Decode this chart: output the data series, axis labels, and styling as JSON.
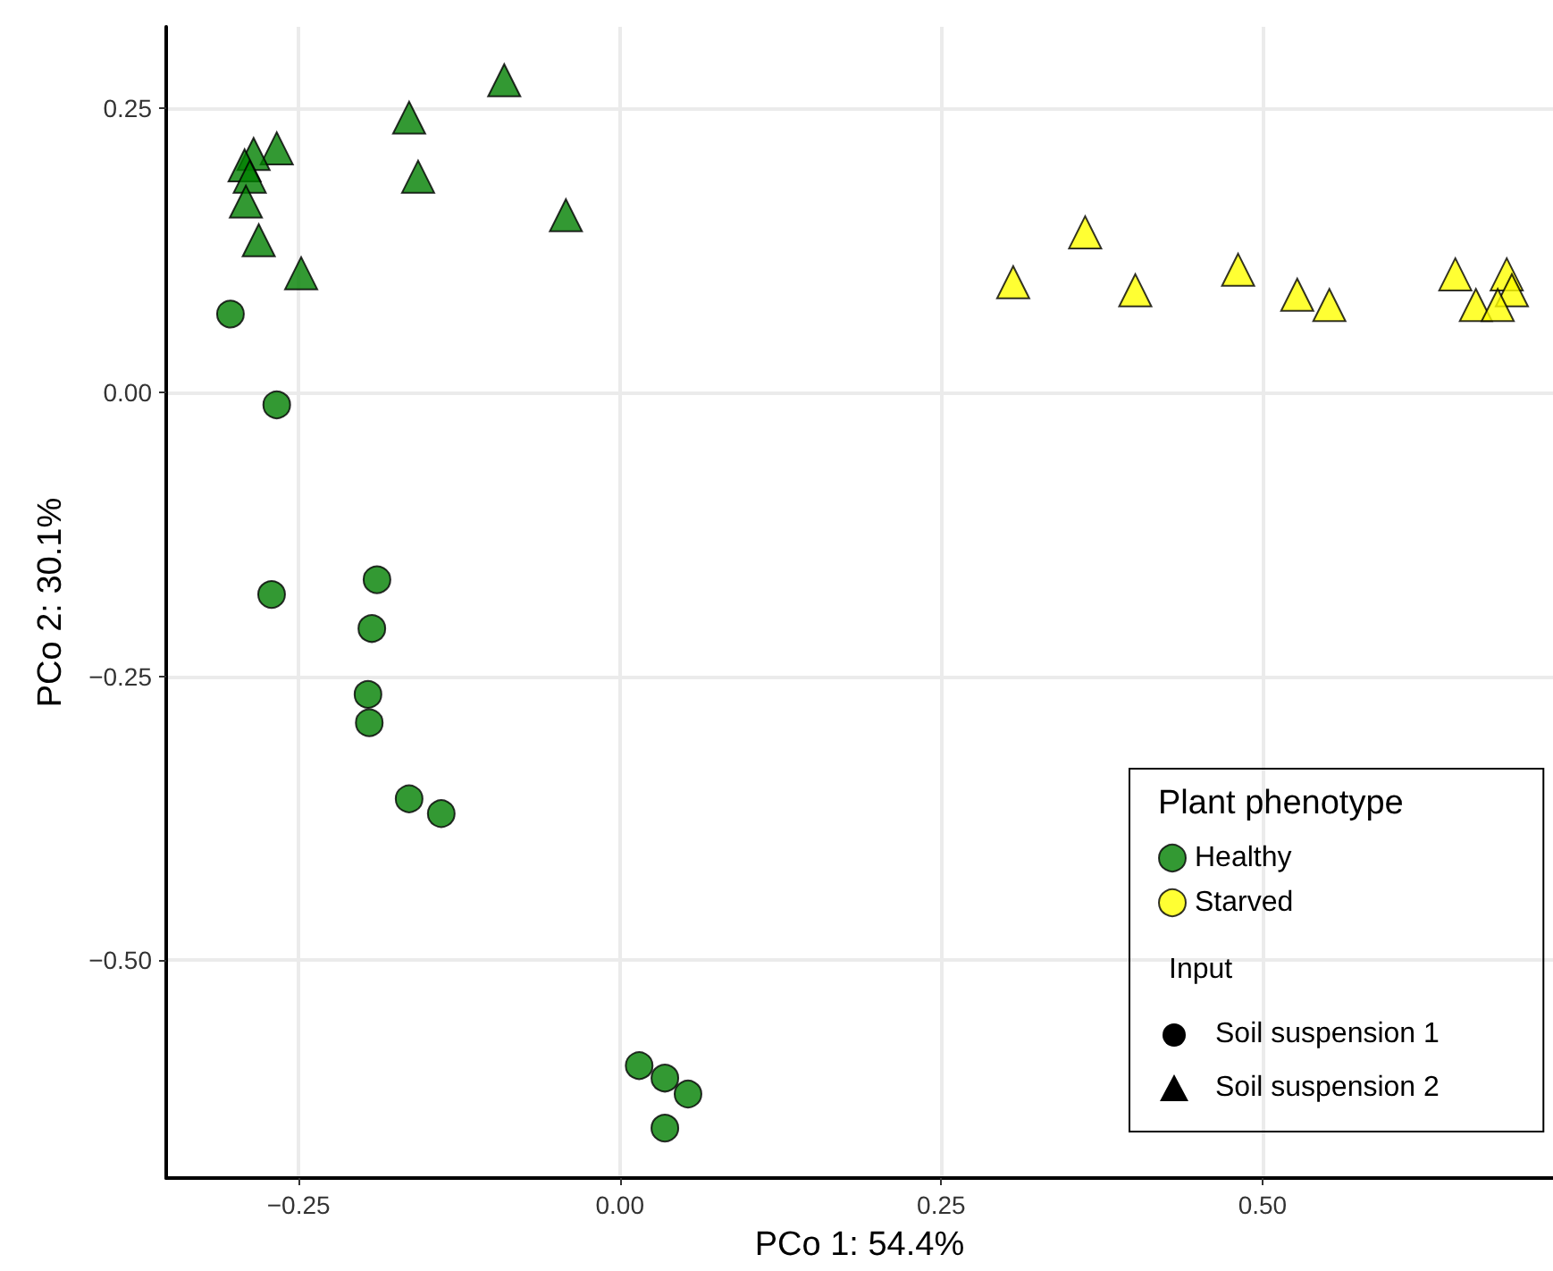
{
  "chart_data": {
    "type": "scatter",
    "xlabel": "PCo 1: 54.4%",
    "ylabel": "PCo 2: 30.1%",
    "xlim": [
      -0.353,
      0.726
    ],
    "ylim": [
      -0.692,
      0.322
    ],
    "xticks": [
      {
        "value": -0.25,
        "label": "−0.25"
      },
      {
        "value": 0,
        "label": "0.00"
      },
      {
        "value": 0.25,
        "label": "0.25"
      },
      {
        "value": 0.5,
        "label": "0.50"
      }
    ],
    "yticks": [
      {
        "value": -0.5,
        "label": "−0.50"
      },
      {
        "value": -0.25,
        "label": "−0.25"
      },
      {
        "value": 0,
        "label": "0.00"
      },
      {
        "value": 0.25,
        "label": "0.25"
      }
    ],
    "grid": true,
    "legend": "bottom right",
    "legend_title": "Plant phenotype",
    "annotations": [
      "Input",
      "Soil suspension 1",
      "Soil suspension 2"
    ],
    "series": [
      {
        "name": "Healthy",
        "color": "#008000",
        "marker": "circle",
        "x": [
          -0.303,
          -0.267,
          -0.271,
          -0.189,
          -0.193,
          -0.196,
          -0.195,
          -0.164,
          -0.139,
          0.015,
          0.035,
          0.053,
          0.035
        ],
        "values": [
          0.069,
          -0.011,
          -0.178,
          -0.165,
          -0.208,
          -0.266,
          -0.291,
          -0.358,
          -0.371,
          -0.593,
          -0.604,
          -0.618,
          -0.648
        ]
      },
      {
        "color": "#008000",
        "marker": "triangle",
        "x": [
          -0.09,
          -0.164,
          -0.157,
          -0.042,
          -0.267,
          -0.285,
          -0.292,
          -0.288,
          -0.291,
          -0.281,
          -0.248
        ],
        "values": [
          0.275,
          0.242,
          0.19,
          0.156,
          0.215,
          0.21,
          0.2,
          0.19,
          0.168,
          0.134,
          0.105
        ]
      },
      {
        "name": "Starved",
        "color": "#ffff00",
        "marker": "triangle",
        "x": [
          0.306,
          0.362,
          0.401,
          0.481,
          0.527,
          0.552,
          0.65,
          0.69,
          0.694,
          0.666,
          0.683
        ],
        "values": [
          0.097,
          0.141,
          0.09,
          0.108,
          0.086,
          0.077,
          0.104,
          0.104,
          0.09,
          0.077,
          0.077
        ]
      }
    ]
  }
}
